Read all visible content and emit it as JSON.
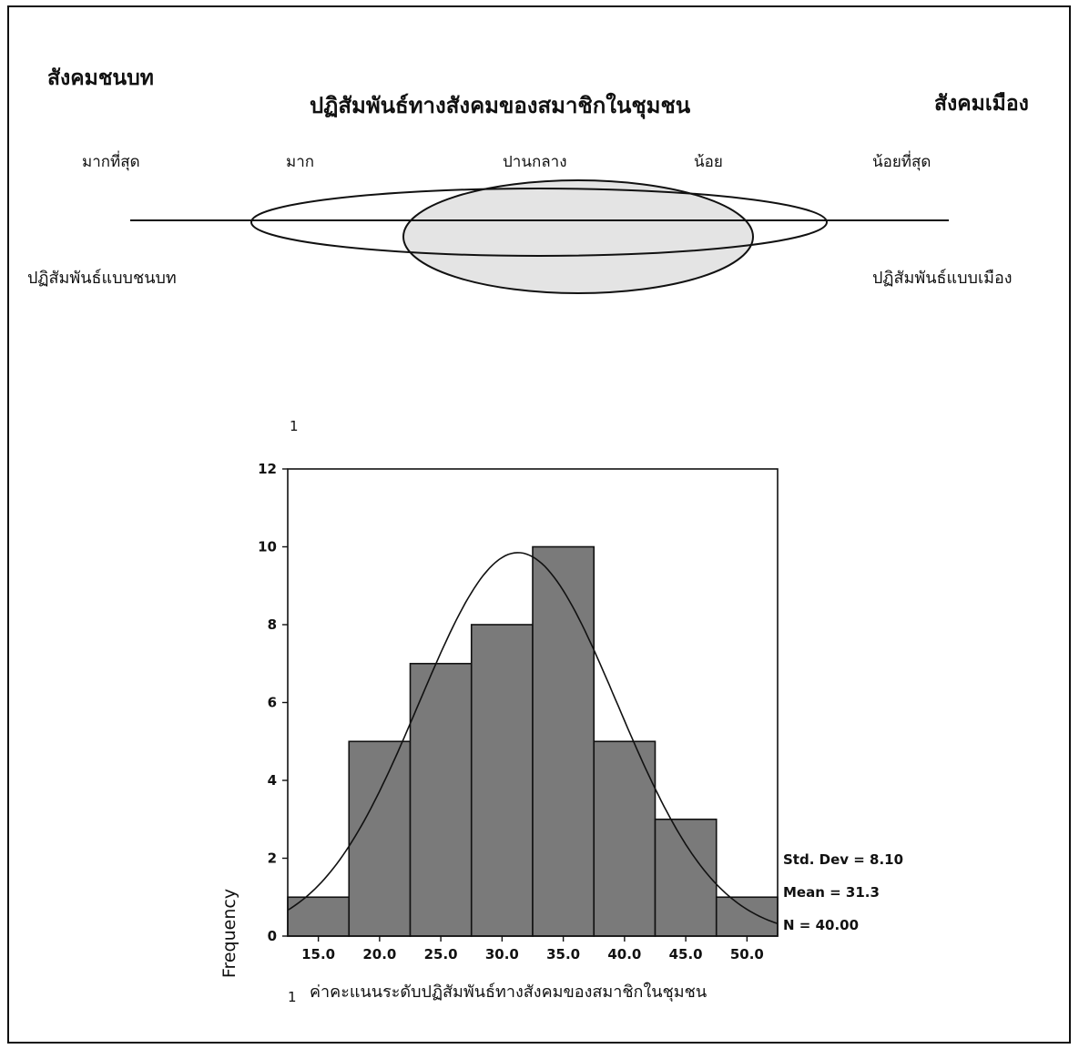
{
  "diagram": {
    "left_corner": "สังคมชนบท",
    "title": "ปฏิสัมพันธ์ทางสังคมของสมาชิกในชุมชน",
    "right_corner": "สังคมเมือง",
    "scale_labels": [
      "มากที่สุด",
      "มาก",
      "ปานกลาง",
      "น้อย",
      "น้อยที่สุด"
    ],
    "left_bottom": "ปฏิสัมพันธ์แบบชนบท",
    "right_bottom": "ปฏิสัมพันธ์แบบเมือง"
  },
  "page_marks": {
    "top": "1",
    "bottom": "1"
  },
  "chart_data": {
    "type": "bar",
    "subtype": "histogram",
    "categories": [
      "15.0",
      "20.0",
      "25.0",
      "30.0",
      "35.0",
      "40.0",
      "45.0",
      "50.0"
    ],
    "values": [
      1,
      5,
      7,
      8,
      10,
      5,
      3,
      1
    ],
    "bin_width": 5,
    "xlim": [
      12.5,
      52.5
    ],
    "ylim": [
      0,
      12
    ],
    "yticks": [
      0,
      2,
      4,
      6,
      8,
      10,
      12
    ],
    "xlabel": "ค่าคะแนนระดับปฏิสัมพันธ์ทางสังคมของสมาชิกในชุมชน",
    "ylabel": "Frequency",
    "normal_curve": {
      "mean": 31.3,
      "std": 8.1,
      "n": 40
    },
    "stats": [
      "Std. Dev = 8.10",
      "Mean = 31.3",
      "N = 40.00"
    ],
    "bar_color": "#7a7a7a",
    "grid": false
  }
}
